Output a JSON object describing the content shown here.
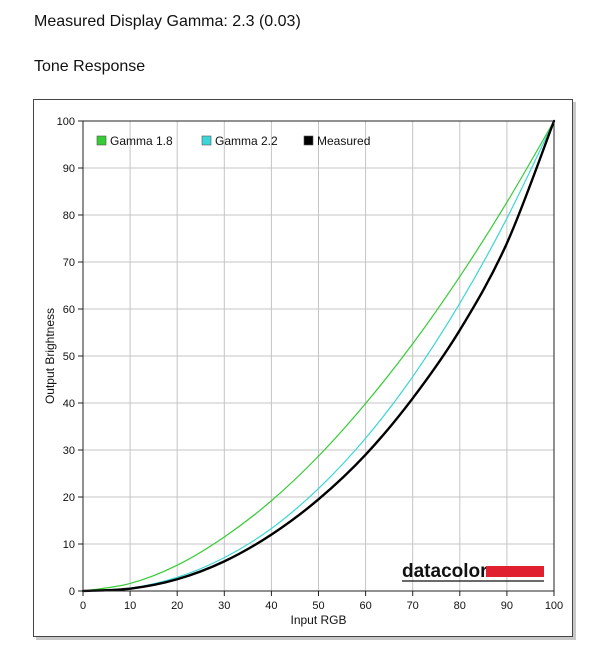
{
  "page": {
    "title": "Measured Display Gamma: 2.3 (0.03)",
    "section_title": "Tone Response"
  },
  "logo": {
    "text": "datacolor",
    "accent_color": "#e0202e"
  },
  "chart_data": {
    "type": "line",
    "xlabel": "Input RGB",
    "ylabel": "Output Brightness",
    "xlim": [
      0,
      100
    ],
    "ylim": [
      0,
      100
    ],
    "x_ticks": [
      0,
      10,
      20,
      30,
      40,
      50,
      60,
      70,
      80,
      90,
      100
    ],
    "y_ticks": [
      0,
      10,
      20,
      30,
      40,
      50,
      60,
      70,
      80,
      90,
      100
    ],
    "grid": true,
    "legend_position": "top-left",
    "series": [
      {
        "name": "Gamma 1.8",
        "color": "#35cc35",
        "x": [
          0,
          10,
          20,
          30,
          40,
          50,
          60,
          70,
          80,
          90,
          100
        ],
        "y": [
          0,
          1.6,
          5.5,
          11.5,
          19.2,
          28.7,
          39.9,
          52.6,
          66.9,
          82.7,
          100
        ]
      },
      {
        "name": "Gamma 2.2",
        "color": "#3cd6d6",
        "x": [
          0,
          10,
          20,
          30,
          40,
          50,
          60,
          70,
          80,
          90,
          100
        ],
        "y": [
          0,
          0.6,
          2.9,
          7.1,
          13.3,
          21.8,
          32.5,
          45.6,
          61.2,
          79.3,
          100
        ]
      },
      {
        "name": "Measured",
        "color": "#000000",
        "x": [
          0,
          10,
          20,
          30,
          40,
          50,
          60,
          70,
          80,
          90,
          100
        ],
        "y": [
          0,
          0.5,
          2.5,
          6.3,
          12,
          19.5,
          29,
          41,
          55.5,
          74,
          100
        ]
      }
    ]
  }
}
